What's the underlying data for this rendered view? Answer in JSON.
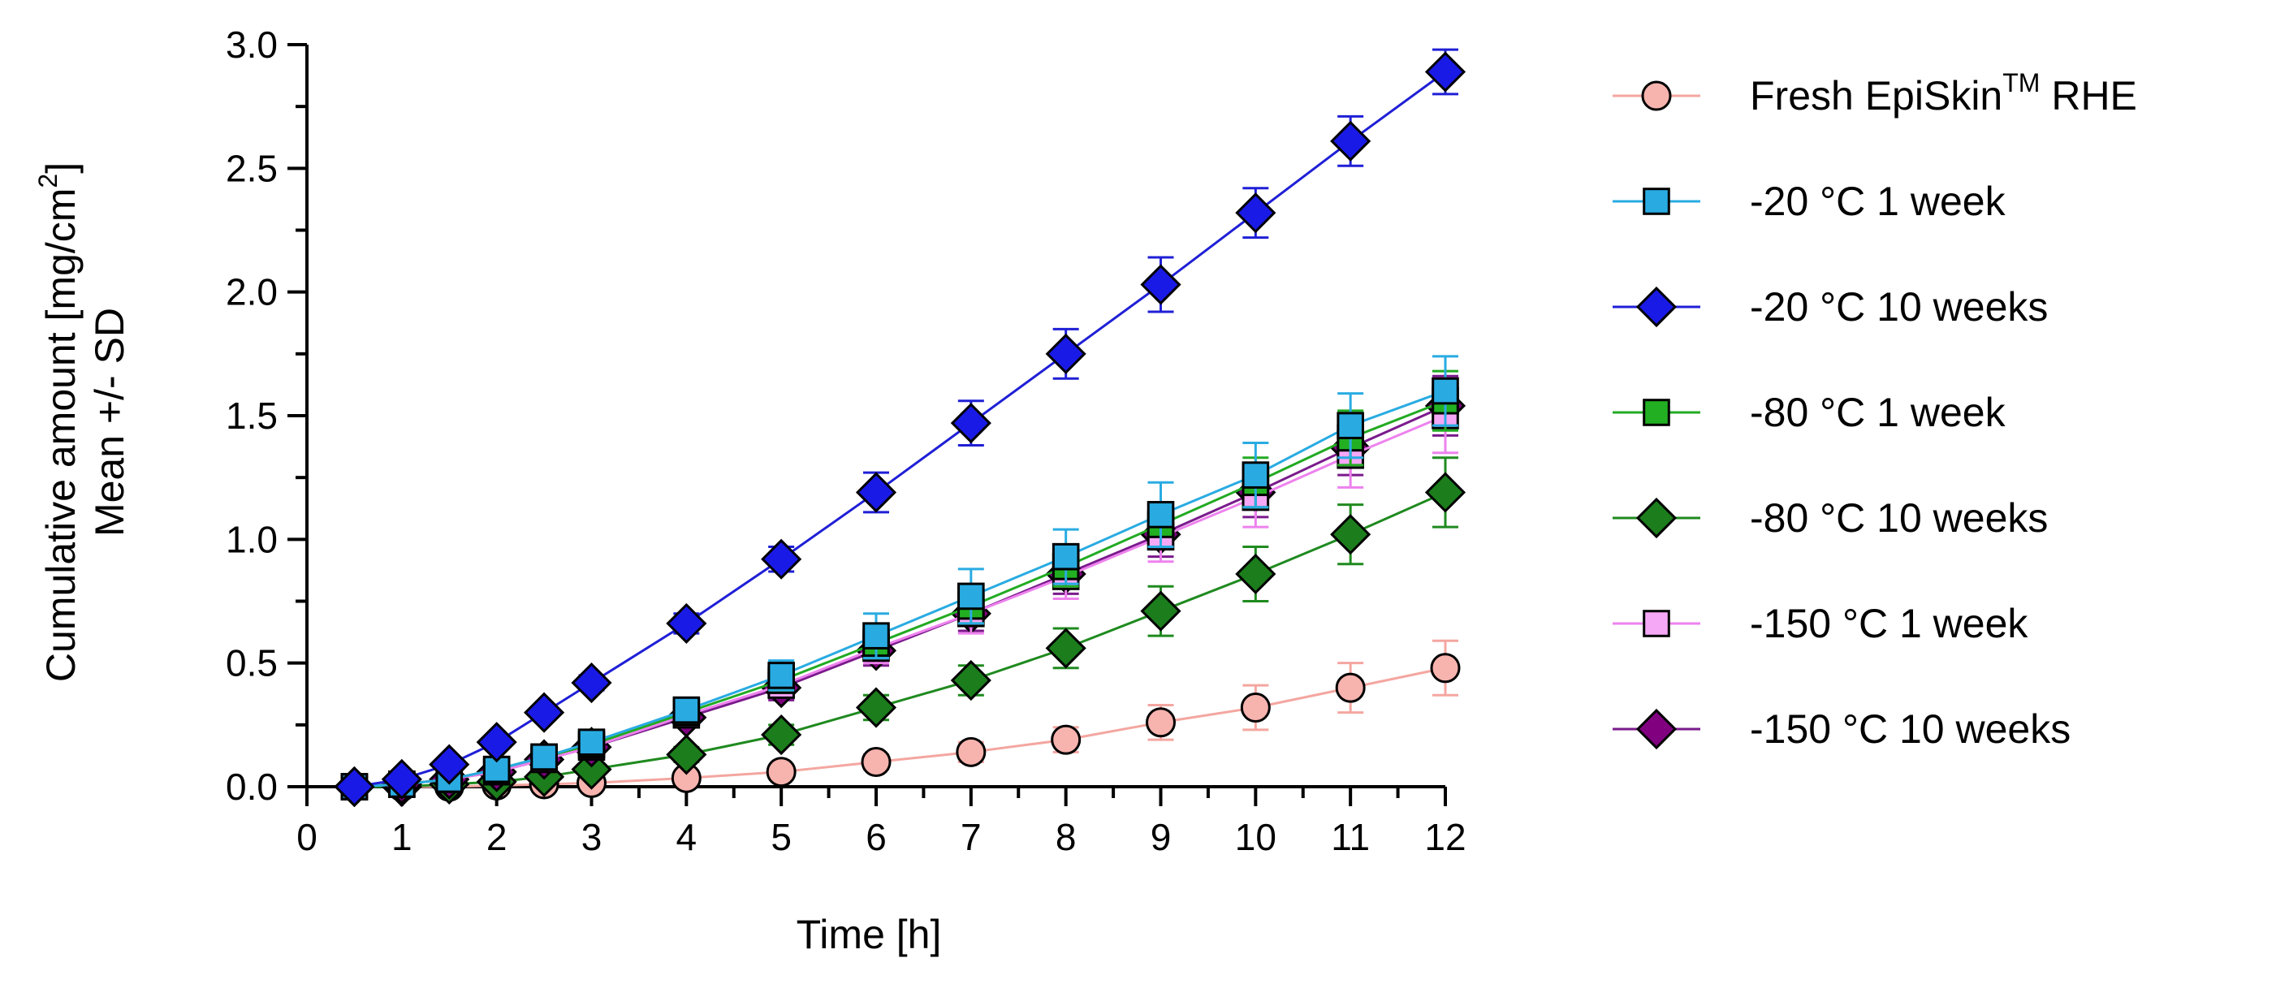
{
  "chart_data": {
    "type": "line",
    "xlabel": "Time [h]",
    "ylabel_line1_prefix": "Cumulative amount [mg/cm",
    "ylabel_line1_sup": "2",
    "ylabel_line1_suffix": "]",
    "ylabel_line2": "Mean +/- SD",
    "xlim": [
      0,
      12
    ],
    "ylim": [
      0,
      3.0
    ],
    "x_ticks": [
      0,
      1,
      2,
      3,
      4,
      5,
      6,
      7,
      8,
      9,
      10,
      11,
      12
    ],
    "x_tick_labels": [
      "0",
      "1",
      "2",
      "3",
      "4",
      "5",
      "6",
      "7",
      "8",
      "9",
      "10",
      "11",
      "12"
    ],
    "y_ticks": [
      0,
      0.5,
      1.0,
      1.5,
      2.0,
      2.5,
      3.0
    ],
    "y_tick_labels": [
      "0.0",
      "0.5",
      "1.0",
      "1.5",
      "2.0",
      "2.5",
      "3.0"
    ],
    "x": [
      0.5,
      1,
      1.5,
      2,
      2.5,
      3,
      4,
      5,
      6,
      7,
      8,
      9,
      10,
      11,
      12
    ],
    "legend_position": "right",
    "series": [
      {
        "name": "Fresh EpiSkin",
        "name_sup": "TM",
        "name_suffix": " RHE",
        "marker": "circle",
        "line_color": "#f4a6a0",
        "fill": "#f7b3ae",
        "values": [
          0.0,
          0.0,
          0.0,
          0.005,
          0.01,
          0.015,
          0.035,
          0.06,
          0.1,
          0.14,
          0.19,
          0.26,
          0.32,
          0.4,
          0.48
        ],
        "sd": [
          0.0,
          0.0,
          0.0,
          0.0,
          0.0,
          0.0,
          0.01,
          0.02,
          0.03,
          0.04,
          0.05,
          0.07,
          0.09,
          0.1,
          0.11
        ]
      },
      {
        "name": "-20 °C 1 week",
        "marker": "square",
        "line_color": "#29abe2",
        "fill": "#29abe2",
        "values": [
          0.0,
          0.01,
          0.03,
          0.07,
          0.12,
          0.18,
          0.31,
          0.45,
          0.61,
          0.77,
          0.93,
          1.1,
          1.26,
          1.46,
          1.6
        ],
        "sd": [
          0.0,
          0.01,
          0.02,
          0.02,
          0.03,
          0.03,
          0.04,
          0.06,
          0.09,
          0.11,
          0.11,
          0.13,
          0.13,
          0.13,
          0.14
        ]
      },
      {
        "name": "-20 °C 10 weeks",
        "marker": "diamond",
        "line_color": "#1f1fd6",
        "fill": "#1a1ae6",
        "values": [
          0.0,
          0.03,
          0.09,
          0.18,
          0.3,
          0.42,
          0.66,
          0.92,
          1.19,
          1.47,
          1.75,
          2.03,
          2.32,
          2.61,
          2.89
        ],
        "sd": [
          0.0,
          0.01,
          0.01,
          0.02,
          0.02,
          0.03,
          0.04,
          0.05,
          0.08,
          0.09,
          0.1,
          0.11,
          0.1,
          0.1,
          0.09
        ]
      },
      {
        "name": "-80 °C 1 week",
        "marker": "square",
        "line_color": "#22aa22",
        "fill": "#22b022",
        "values": [
          0.0,
          0.01,
          0.03,
          0.07,
          0.12,
          0.17,
          0.3,
          0.43,
          0.58,
          0.73,
          0.89,
          1.06,
          1.23,
          1.41,
          1.56
        ],
        "sd": [
          0.0,
          0.01,
          0.01,
          0.02,
          0.02,
          0.03,
          0.04,
          0.05,
          0.06,
          0.07,
          0.08,
          0.09,
          0.1,
          0.11,
          0.12
        ]
      },
      {
        "name": "-80 °C 10 weeks",
        "marker": "diamond",
        "line_color": "#1f8a1f",
        "fill": "#1c7d1c",
        "values": [
          0.0,
          0.0,
          0.01,
          0.02,
          0.04,
          0.07,
          0.13,
          0.21,
          0.32,
          0.43,
          0.56,
          0.71,
          0.86,
          1.02,
          1.19
        ],
        "sd": [
          0.0,
          0.0,
          0.01,
          0.01,
          0.01,
          0.02,
          0.03,
          0.04,
          0.05,
          0.06,
          0.08,
          0.1,
          0.11,
          0.12,
          0.14
        ]
      },
      {
        "name": "-150 °C 1 week",
        "marker": "square",
        "line_color": "#ee82ee",
        "fill": "#f5a8f5",
        "values": [
          0.0,
          0.01,
          0.03,
          0.06,
          0.11,
          0.16,
          0.29,
          0.41,
          0.56,
          0.7,
          0.85,
          1.01,
          1.17,
          1.34,
          1.5
        ],
        "sd": [
          0.0,
          0.01,
          0.01,
          0.02,
          0.02,
          0.03,
          0.04,
          0.05,
          0.06,
          0.08,
          0.09,
          0.1,
          0.12,
          0.13,
          0.15
        ]
      },
      {
        "name": "-150 °C 10 weeks",
        "marker": "diamond",
        "line_color": "#7a1a8c",
        "fill": "#800080",
        "values": [
          0.0,
          0.01,
          0.03,
          0.06,
          0.11,
          0.16,
          0.28,
          0.4,
          0.55,
          0.7,
          0.86,
          1.02,
          1.19,
          1.37,
          1.54
        ],
        "sd": [
          0.0,
          0.01,
          0.01,
          0.02,
          0.02,
          0.03,
          0.04,
          0.05,
          0.06,
          0.07,
          0.08,
          0.09,
          0.1,
          0.11,
          0.12
        ]
      }
    ]
  }
}
